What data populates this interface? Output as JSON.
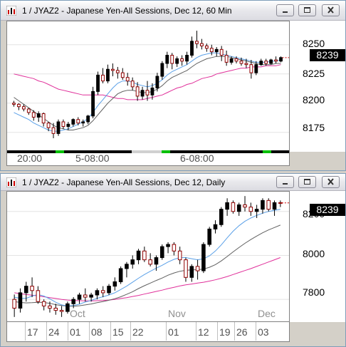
{
  "window1": {
    "title": "1 / JYAZ2 - Japanese Yen-All Sessions, Dec 12, 60 Min",
    "yaxis": [
      "8250",
      "8225",
      "8200",
      "8175"
    ],
    "last_price": "8239",
    "time_labels": [
      "20:00",
      "5-08:00",
      "6-08:00"
    ],
    "chart_data": {
      "type": "candlestick",
      "ylim": [
        8159,
        8270
      ],
      "ticks": [
        8250,
        8225,
        8200,
        8175
      ],
      "candles": [
        [
          8200,
          8202,
          8197,
          8199
        ],
        [
          8199,
          8200,
          8194,
          8197
        ],
        [
          8197,
          8199,
          8193,
          8195
        ],
        [
          8195,
          8196,
          8190,
          8192
        ],
        [
          8192,
          8194,
          8185,
          8188
        ],
        [
          8188,
          8193,
          8184,
          8191
        ],
        [
          8191,
          8192,
          8180,
          8183
        ],
        [
          8183,
          8184,
          8176,
          8179
        ],
        [
          8179,
          8183,
          8170,
          8174
        ],
        [
          8174,
          8186,
          8172,
          8184
        ],
        [
          8184,
          8186,
          8178,
          8180
        ],
        [
          8180,
          8184,
          8177,
          8182
        ],
        [
          8182,
          8187,
          8180,
          8186
        ],
        [
          8186,
          8188,
          8181,
          8183
        ],
        [
          8183,
          8186,
          8180,
          8184
        ],
        [
          8184,
          8190,
          8182,
          8189
        ],
        [
          8189,
          8214,
          8187,
          8210
        ],
        [
          8210,
          8227,
          8207,
          8224
        ],
        [
          8224,
          8230,
          8217,
          8219
        ],
        [
          8219,
          8233,
          8217,
          8229
        ],
        [
          8229,
          8234,
          8223,
          8228
        ],
        [
          8228,
          8231,
          8221,
          8226
        ],
        [
          8226,
          8230,
          8220,
          8222
        ],
        [
          8222,
          8226,
          8215,
          8219
        ],
        [
          8219,
          8222,
          8211,
          8214
        ],
        [
          8214,
          8218,
          8202,
          8206
        ],
        [
          8206,
          8214,
          8203,
          8211
        ],
        [
          8211,
          8219,
          8202,
          8207
        ],
        [
          8207,
          8217,
          8203,
          8213
        ],
        [
          8213,
          8226,
          8210,
          8223
        ],
        [
          8223,
          8236,
          8220,
          8234
        ],
        [
          8234,
          8244,
          8230,
          8241
        ],
        [
          8241,
          8243,
          8229,
          8234
        ],
        [
          8234,
          8240,
          8231,
          8238
        ],
        [
          8238,
          8241,
          8232,
          8236
        ],
        [
          8236,
          8244,
          8233,
          8241
        ],
        [
          8241,
          8257,
          8239,
          8253
        ],
        [
          8253,
          8262,
          8247,
          8251
        ],
        [
          8251,
          8255,
          8246,
          8249
        ],
        [
          8249,
          8251,
          8244,
          8247
        ],
        [
          8247,
          8250,
          8241,
          8244
        ],
        [
          8244,
          8248,
          8240,
          8246
        ],
        [
          8246,
          8249,
          8236,
          8241
        ],
        [
          8241,
          8245,
          8232,
          8235
        ],
        [
          8235,
          8240,
          8233,
          8238
        ],
        [
          8238,
          8240,
          8234,
          8236
        ],
        [
          8236,
          8239,
          8232,
          8234
        ],
        [
          8234,
          8238,
          8230,
          8233
        ],
        [
          8233,
          8237,
          8221,
          8226
        ],
        [
          8226,
          8236,
          8224,
          8233
        ],
        [
          8233,
          8238,
          8232,
          8236
        ],
        [
          8236,
          8238,
          8232,
          8234
        ],
        [
          8234,
          8238,
          8233,
          8237
        ],
        [
          8237,
          8240,
          8234,
          8236
        ],
        [
          8236,
          8240,
          8235,
          8239
        ]
      ],
      "ma_fast": [
        8192,
        8190,
        8188,
        8186,
        8183,
        8181,
        8179,
        8177,
        8176,
        8176,
        8177,
        8178,
        8180,
        8182,
        8184,
        8187,
        8192,
        8198,
        8203,
        8208,
        8213,
        8217,
        8219,
        8219,
        8218,
        8216,
        8215,
        8214,
        8215,
        8217,
        8220,
        8224,
        8227,
        8229,
        8231,
        8233,
        8236,
        8239,
        8241,
        8242,
        8243,
        8243,
        8242,
        8241,
        8240,
        8239,
        8238,
        8237,
        8236,
        8235,
        8235,
        8235,
        8236,
        8236,
        8237
      ],
      "ma_mid": [
        8205,
        8202,
        8199,
        8196,
        8193,
        8190,
        8187,
        8184,
        8181,
        8179,
        8178,
        8177,
        8177,
        8178,
        8179,
        8181,
        8185,
        8190,
        8195,
        8200,
        8204,
        8208,
        8210,
        8211,
        8211,
        8210,
        8209,
        8209,
        8210,
        8212,
        8215,
        8219,
        8222,
        8224,
        8226,
        8228,
        8231,
        8234,
        8236,
        8238,
        8239,
        8240,
        8240,
        8240,
        8239,
        8238,
        8237,
        8236,
        8235,
        8234,
        8233,
        8233,
        8233,
        8234,
        8234
      ],
      "ma_slow": [
        8225,
        8224,
        8223,
        8222,
        8221,
        8219,
        8218,
        8216,
        8214,
        8212,
        8211,
        8210,
        8209,
        8208,
        8207,
        8207,
        8207,
        8207,
        8207,
        8206,
        8205,
        8204,
        8204,
        8203,
        8203,
        8203,
        8203,
        8204,
        8205,
        8206,
        8207,
        8209,
        8211,
        8213,
        8214,
        8216,
        8217,
        8219,
        8221,
        8222,
        8223,
        8225,
        8226,
        8227,
        8228,
        8229,
        8230,
        8230,
        8231,
        8231,
        8231,
        8232,
        8232,
        8232,
        8233
      ]
    }
  },
  "window2": {
    "title": "1 / JYAZ2 - Japanese Yen-All Sessions, Dec 12, Daily",
    "yaxis": [
      "8200",
      "8000",
      "7800"
    ],
    "last_price": "8239",
    "month_labels": [
      "Oct",
      "Nov",
      "Dec"
    ],
    "day_labels": [
      "17",
      "24",
      "01",
      "08",
      "15",
      "22",
      "01",
      "12",
      "19",
      "26",
      "03"
    ],
    "chart_data": {
      "type": "candlestick",
      "ylim": [
        7700,
        8290
      ],
      "ticks": [
        8200,
        8000,
        7800
      ],
      "candles": [
        [
          7800,
          7822,
          7720,
          7760
        ],
        [
          7760,
          7850,
          7740,
          7830
        ],
        [
          7830,
          7880,
          7790,
          7860
        ],
        [
          7860,
          7900,
          7810,
          7840
        ],
        [
          7840,
          7860,
          7780,
          7790
        ],
        [
          7790,
          7800,
          7750,
          7770
        ],
        [
          7770,
          7790,
          7740,
          7760
        ],
        [
          7760,
          7780,
          7730,
          7750
        ],
        [
          7750,
          7770,
          7720,
          7745
        ],
        [
          7745,
          7790,
          7735,
          7780
        ],
        [
          7780,
          7810,
          7760,
          7800
        ],
        [
          7800,
          7830,
          7780,
          7820
        ],
        [
          7820,
          7850,
          7790,
          7810
        ],
        [
          7810,
          7830,
          7790,
          7820
        ],
        [
          7820,
          7850,
          7800,
          7840
        ],
        [
          7840,
          7860,
          7810,
          7830
        ],
        [
          7830,
          7870,
          7820,
          7860
        ],
        [
          7860,
          7900,
          7840,
          7880
        ],
        [
          7880,
          7950,
          7870,
          7940
        ],
        [
          7940,
          7970,
          7900,
          7960
        ],
        [
          7960,
          8000,
          7940,
          7980
        ],
        [
          7980,
          8030,
          7960,
          8020
        ],
        [
          8020,
          8040,
          7970,
          7980
        ],
        [
          7980,
          8010,
          7950,
          7960
        ],
        [
          7960,
          8000,
          7930,
          7990
        ],
        [
          7990,
          8050,
          7980,
          8040
        ],
        [
          8040,
          8060,
          8010,
          8050
        ],
        [
          8050,
          8060,
          8000,
          8020
        ],
        [
          8020,
          8040,
          7960,
          7980
        ],
        [
          7980,
          7990,
          7880,
          7900
        ],
        [
          7900,
          7960,
          7880,
          7950
        ],
        [
          7950,
          7980,
          7890,
          7930
        ],
        [
          7930,
          8060,
          7920,
          8050
        ],
        [
          8050,
          8130,
          8040,
          8120
        ],
        [
          8120,
          8160,
          8100,
          8140
        ],
        [
          8140,
          8220,
          8130,
          8210
        ],
        [
          8210,
          8260,
          8180,
          8240
        ],
        [
          8240,
          8250,
          8190,
          8200
        ],
        [
          8200,
          8240,
          8180,
          8230
        ],
        [
          8230,
          8270,
          8200,
          8220
        ],
        [
          8220,
          8240,
          8180,
          8200
        ],
        [
          8200,
          8230,
          8170,
          8210
        ],
        [
          8210,
          8260,
          8190,
          8250
        ],
        [
          8250,
          8260,
          8200,
          8210
        ],
        [
          8210,
          8250,
          8180,
          8240
        ],
        [
          8240,
          8250,
          8220,
          8239
        ]
      ],
      "ma_fast": [
        7810,
        7805,
        7805,
        7815,
        7822,
        7815,
        7802,
        7787,
        7775,
        7770,
        7772,
        7778,
        7788,
        7795,
        7805,
        7812,
        7820,
        7830,
        7845,
        7860,
        7878,
        7896,
        7913,
        7928,
        7942,
        7955,
        7970,
        7982,
        7990,
        7990,
        7985,
        7980,
        7985,
        7998,
        8020,
        8048,
        8080,
        8110,
        8135,
        8155,
        8170,
        8182,
        8192,
        8200,
        8205,
        8210
      ],
      "ma_mid": [
        7790,
        7786,
        7784,
        7785,
        7787,
        7786,
        7782,
        7776,
        7772,
        7769,
        7769,
        7771,
        7775,
        7779,
        7785,
        7790,
        7796,
        7803,
        7812,
        7823,
        7835,
        7849,
        7862,
        7874,
        7886,
        7897,
        7910,
        7920,
        7928,
        7932,
        7934,
        7935,
        7938,
        7946,
        7958,
        7975,
        7995,
        8016,
        8036,
        8055,
        8072,
        8088,
        8103,
        8116,
        8127,
        8138
      ],
      "ma_slow": [
        7830,
        7826,
        7822,
        7819,
        7816,
        7812,
        7808,
        7804,
        7800,
        7797,
        7795,
        7794,
        7793,
        7793,
        7794,
        7795,
        7797,
        7800,
        7804,
        7808,
        7813,
        7818,
        7824,
        7830,
        7836,
        7842,
        7849,
        7855,
        7861,
        7866,
        7870,
        7874,
        7878,
        7883,
        7889,
        7896,
        7904,
        7913,
        7922,
        7931,
        7940,
        7950,
        7960,
        7970,
        7980,
        7990
      ]
    }
  }
}
